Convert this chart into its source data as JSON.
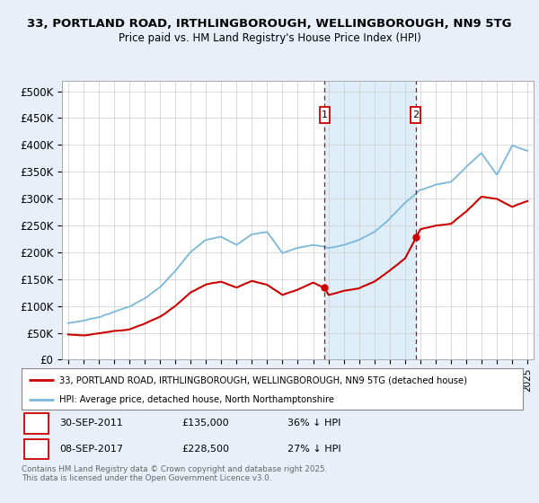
{
  "title_line1": "33, PORTLAND ROAD, IRTHLINGBOROUGH, WELLINGBOROUGH, NN9 5TG",
  "title_line2": "Price paid vs. HM Land Registry's House Price Index (HPI)",
  "ylabel_ticks": [
    "£0",
    "£50K",
    "£100K",
    "£150K",
    "£200K",
    "£250K",
    "£300K",
    "£350K",
    "£400K",
    "£450K",
    "£500K"
  ],
  "ytick_values": [
    0,
    50000,
    100000,
    150000,
    200000,
    250000,
    300000,
    350000,
    400000,
    450000,
    500000
  ],
  "ylim": [
    0,
    520000
  ],
  "xlim_start": 1994.6,
  "xlim_end": 2025.4,
  "hpi_color": "#7ab8d9",
  "price_color": "#cc0000",
  "shade_color": "#ddeef8",
  "marker1_year": 2011.75,
  "marker2_year": 2017.69,
  "marker1_date": "30-SEP-2011",
  "marker1_price": 135000,
  "marker1_label": "36% ↓ HPI",
  "marker2_date": "08-SEP-2017",
  "marker2_price": 228500,
  "marker2_label": "27% ↓ HPI",
  "legend_line1": "33, PORTLAND ROAD, IRTHLINGBOROUGH, WELLINGBOROUGH, NN9 5TG (detached house)",
  "legend_line2": "HPI: Average price, detached house, North Northamptonshire",
  "footer": "Contains HM Land Registry data © Crown copyright and database right 2025.\nThis data is licensed under the Open Government Licence v3.0.",
  "background_color": "#e8eff8",
  "plot_bg_color": "#ffffff",
  "hpi_years": [
    1995,
    1996,
    1997,
    1998,
    1999,
    2000,
    2001,
    2002,
    2003,
    2004,
    2005,
    2006,
    2007,
    2008,
    2009,
    2010,
    2011,
    2012,
    2013,
    2014,
    2015,
    2016,
    2017,
    2018,
    2019,
    2020,
    2021,
    2022,
    2023,
    2024,
    2025
  ],
  "hpi_values": [
    68000,
    73000,
    80000,
    90000,
    100000,
    115000,
    135000,
    165000,
    200000,
    225000,
    230000,
    215000,
    235000,
    240000,
    200000,
    210000,
    215000,
    210000,
    215000,
    225000,
    240000,
    265000,
    295000,
    320000,
    330000,
    335000,
    365000,
    390000,
    350000,
    405000,
    395000
  ],
  "price_years": [
    1995,
    1996,
    1997,
    1998,
    1999,
    2000,
    2001,
    2002,
    2003,
    2004,
    2005,
    2006,
    2007,
    2008,
    2009,
    2010,
    2011,
    2011.76,
    2012,
    2013,
    2014,
    2015,
    2016,
    2017,
    2017.7,
    2018,
    2019,
    2020,
    2021,
    2022,
    2023,
    2024,
    2025
  ],
  "price_values": [
    47000,
    46000,
    50000,
    55000,
    58000,
    68000,
    80000,
    100000,
    125000,
    140000,
    145000,
    135000,
    148000,
    140000,
    122000,
    132000,
    145000,
    135000,
    122000,
    130000,
    135000,
    148000,
    168000,
    190000,
    228500,
    245000,
    252000,
    255000,
    278000,
    305000,
    300000,
    285000,
    295000
  ]
}
